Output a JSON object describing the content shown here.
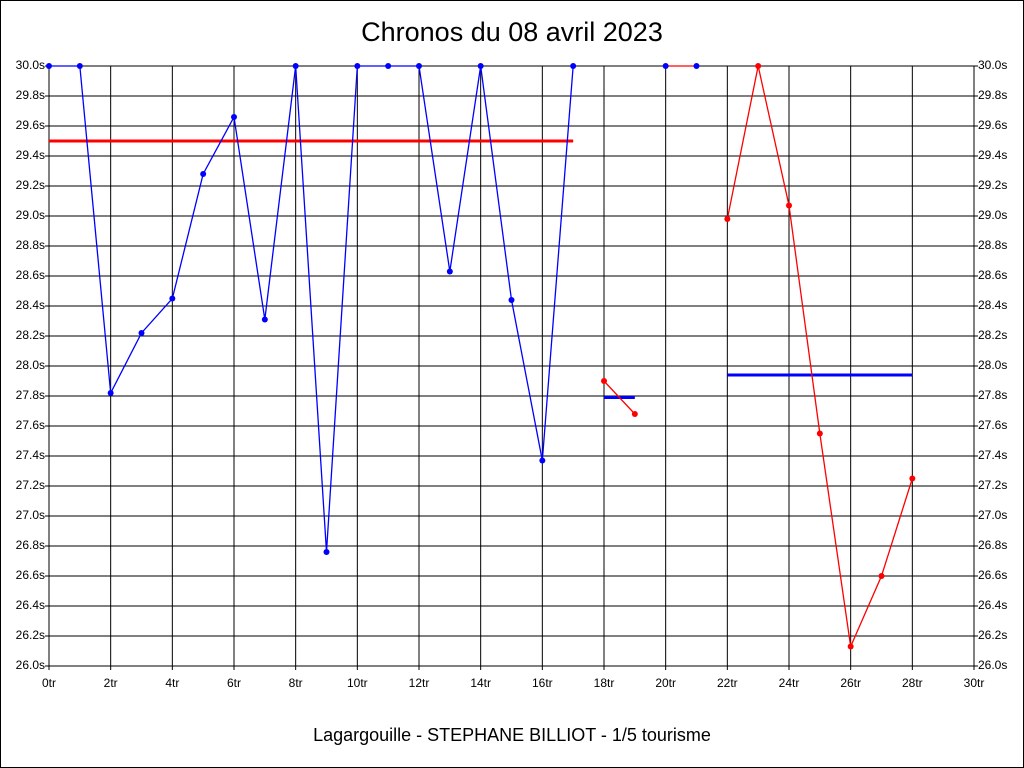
{
  "chart_data": {
    "type": "line",
    "title": "Chronos du 08 avril 2023",
    "subtitle": "Lagargouille - STEPHANE BILLIOT - 1/5 tourisme",
    "xlim": [
      0,
      30
    ],
    "ylim": [
      26.0,
      30.0
    ],
    "grid": true,
    "xticks": [
      {
        "value": 0,
        "label": "0tr"
      },
      {
        "value": 2,
        "label": "2tr"
      },
      {
        "value": 4,
        "label": "4tr"
      },
      {
        "value": 6,
        "label": "6tr"
      },
      {
        "value": 8,
        "label": "8tr"
      },
      {
        "value": 10,
        "label": "10tr"
      },
      {
        "value": 12,
        "label": "12tr"
      },
      {
        "value": 14,
        "label": "14tr"
      },
      {
        "value": 16,
        "label": "16tr"
      },
      {
        "value": 18,
        "label": "18tr"
      },
      {
        "value": 20,
        "label": "20tr"
      },
      {
        "value": 22,
        "label": "22tr"
      },
      {
        "value": 24,
        "label": "24tr"
      },
      {
        "value": 26,
        "label": "26tr"
      },
      {
        "value": 28,
        "label": "28tr"
      },
      {
        "value": 30,
        "label": "30tr"
      }
    ],
    "yticks": [
      {
        "value": 26.0,
        "label": "26.0s"
      },
      {
        "value": 26.2,
        "label": "26.2s"
      },
      {
        "value": 26.4,
        "label": "26.4s"
      },
      {
        "value": 26.6,
        "label": "26.6s"
      },
      {
        "value": 26.8,
        "label": "26.8s"
      },
      {
        "value": 27.0,
        "label": "27.0s"
      },
      {
        "value": 27.2,
        "label": "27.2s"
      },
      {
        "value": 27.4,
        "label": "27.4s"
      },
      {
        "value": 27.6,
        "label": "27.6s"
      },
      {
        "value": 27.8,
        "label": "27.8s"
      },
      {
        "value": 28.0,
        "label": "28.0s"
      },
      {
        "value": 28.2,
        "label": "28.2s"
      },
      {
        "value": 28.4,
        "label": "28.4s"
      },
      {
        "value": 28.6,
        "label": "28.6s"
      },
      {
        "value": 28.8,
        "label": "28.8s"
      },
      {
        "value": 29.0,
        "label": "29.0s"
      },
      {
        "value": 29.2,
        "label": "29.2s"
      },
      {
        "value": 29.4,
        "label": "29.4s"
      },
      {
        "value": 29.6,
        "label": "29.6s"
      },
      {
        "value": 29.8,
        "label": "29.8s"
      },
      {
        "value": 30.0,
        "label": "30.0s"
      }
    ],
    "series": [
      {
        "color": "#0000ff",
        "marker_color": "#0000ff",
        "x": [
          0,
          1,
          2,
          3,
          4,
          5,
          6,
          7,
          8,
          9,
          10,
          11,
          12,
          13,
          14,
          15,
          16,
          17
        ],
        "values": [
          30.0,
          30.0,
          27.82,
          28.22,
          28.45,
          29.28,
          29.66,
          28.31,
          30.0,
          26.76,
          30.0,
          30.0,
          30.0,
          28.63,
          30.0,
          28.44,
          27.37,
          30.0
        ]
      },
      {
        "color": "#ff0000",
        "marker_color": "#ff0000",
        "x": [
          18,
          19
        ],
        "values": [
          27.9,
          27.68
        ]
      },
      {
        "color": "#ff0000",
        "marker_color": "#0000ff",
        "x": [
          20,
          21
        ],
        "values": [
          30.0,
          30.0
        ]
      },
      {
        "color": "#ff0000",
        "marker_color": "#ff0000",
        "x": [
          22,
          23,
          24,
          25,
          26,
          27,
          28
        ],
        "values": [
          28.98,
          30.0,
          29.07,
          27.55,
          26.13,
          26.6,
          27.25
        ]
      }
    ],
    "averages": [
      {
        "color": "#ff0000",
        "x": [
          0,
          17
        ],
        "value": 29.5
      },
      {
        "color": "#0000ff",
        "x": [
          18,
          19
        ],
        "value": 27.79
      },
      {
        "color": "#0000ff",
        "x": [
          22,
          28
        ],
        "value": 27.94
      }
    ]
  }
}
